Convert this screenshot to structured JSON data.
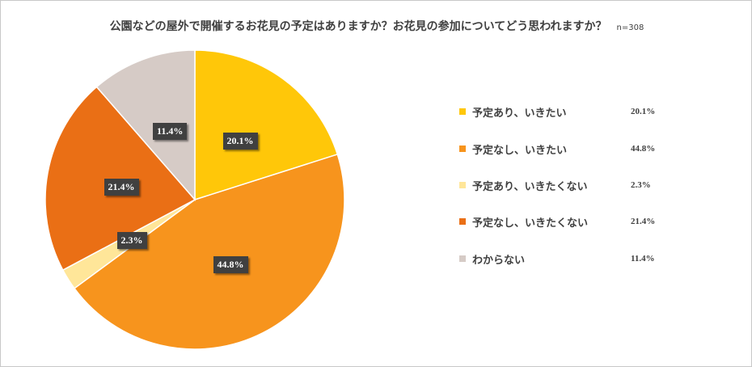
{
  "chart_data": {
    "type": "pie",
    "title": "公園などの屋外で開催するお花見の予定はありますか？お花見の参加についてどう思われますか？",
    "note": "n=308",
    "unit": "%",
    "start_angle_deg": 0,
    "direction": "clockwise",
    "legend_position": "right",
    "slices": [
      {
        "label": "予定あり、いきたい",
        "value": 20.1,
        "display": "20.1%",
        "color": "#FFC709"
      },
      {
        "label": "予定なし、いきたい",
        "value": 44.8,
        "display": "44.8%",
        "color": "#F7941D"
      },
      {
        "label": "予定あり、いきたくない",
        "value": 2.3,
        "display": "2.3%",
        "color": "#FFE699"
      },
      {
        "label": "予定なし、いきたくない",
        "value": 21.4,
        "display": "21.4%",
        "color": "#EA6F15"
      },
      {
        "label": "わからない",
        "value": 11.4,
        "display": "11.4%",
        "color": "#D6CBC6"
      }
    ]
  }
}
